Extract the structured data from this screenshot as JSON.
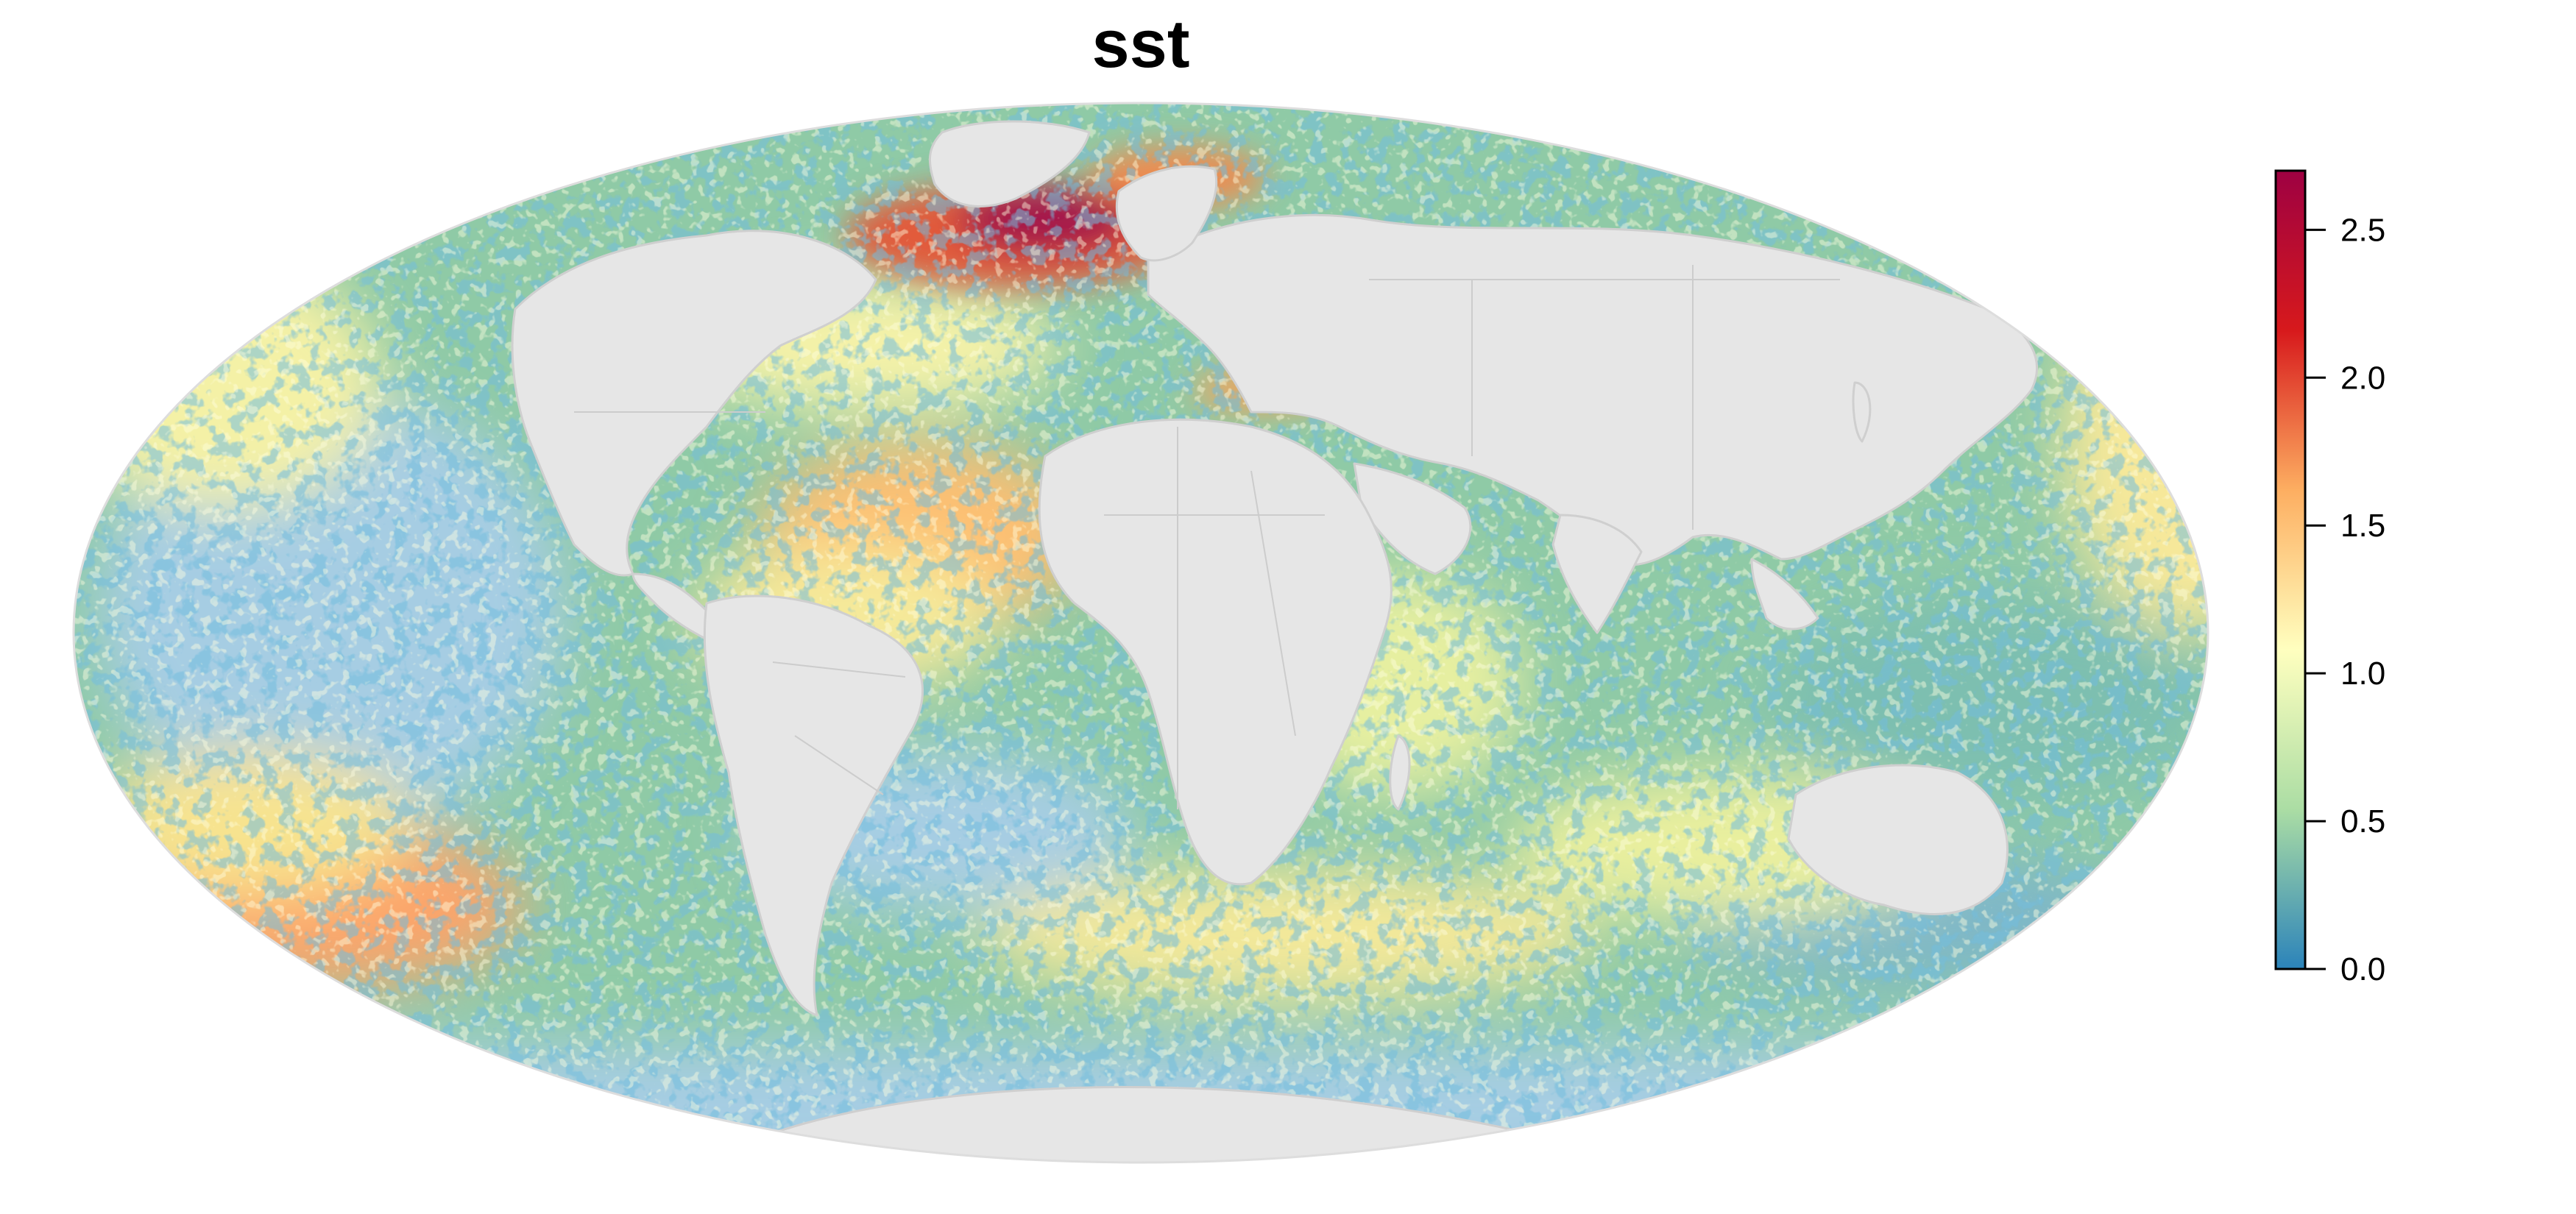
{
  "title": "sst",
  "legend": {
    "min": 0.0,
    "max": 2.7,
    "ticks": [
      "0.0",
      "0.5",
      "1.0",
      "1.5",
      "2.0",
      "2.5"
    ],
    "palette": [
      "#2b83ba",
      "#abdda4",
      "#ffffbf",
      "#fdae61",
      "#d7191c",
      "#9e0142"
    ]
  },
  "colors": {
    "land": "#e6e6e6",
    "low_ocean": "#a6cde3",
    "borders": "#c8c8c8",
    "background": "#ffffff"
  },
  "map": {
    "projection": "Mollweide",
    "layers": [
      "sst raster",
      "country borders"
    ]
  }
}
